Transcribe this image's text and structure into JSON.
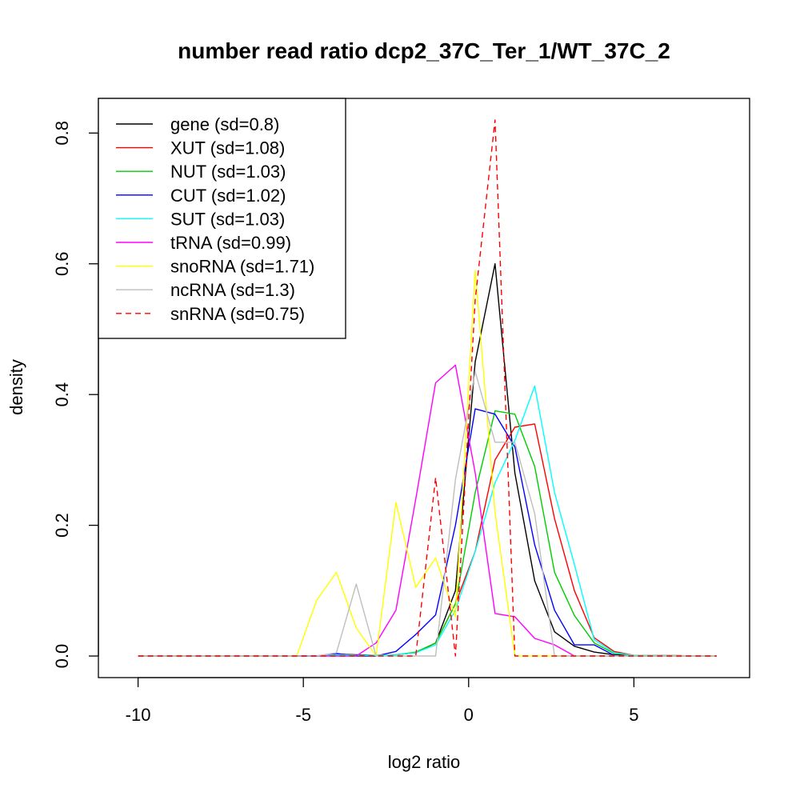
{
  "chart_data": {
    "type": "line",
    "title": "number read ratio dcp2_37C_Ter_1/WT_37C_2",
    "xlabel": "log2 ratio",
    "ylabel": "density",
    "xlim": [
      -11.2,
      8.5
    ],
    "ylim": [
      -0.033,
      0.853
    ],
    "xticks": [
      -10,
      -5,
      0,
      5
    ],
    "yticks": [
      0.0,
      0.2,
      0.4,
      0.6,
      0.8
    ],
    "xtick_labels": [
      "-10",
      "-5",
      "0",
      "5"
    ],
    "ytick_labels": [
      "0.0",
      "0.2",
      "0.4",
      "0.6",
      "0.8"
    ],
    "grid": false,
    "legend_position": "top-left",
    "series": [
      {
        "name": "gene (sd=0.8)",
        "color": "#000000",
        "dash": false,
        "x": [
          -10,
          -5.2,
          -4.6,
          -4,
          -3.4,
          -2.8,
          -2.2,
          -1.6,
          -1.0,
          -0.4,
          0.2,
          0.8,
          1.4,
          2.0,
          2.6,
          3.2,
          3.8,
          4.4,
          5.0,
          7.5
        ],
        "y": [
          0,
          0,
          0,
          0.003,
          0.002,
          0.001,
          0.002,
          0.005,
          0.02,
          0.1,
          0.45,
          0.6,
          0.28,
          0.115,
          0.037,
          0.015,
          0.006,
          0.002,
          0.001,
          0
        ]
      },
      {
        "name": "XUT (sd=1.08)",
        "color": "#ff0000",
        "dash": false,
        "x": [
          -10,
          -5.2,
          -4.6,
          -4,
          -3.4,
          -2.8,
          -2.2,
          -1.6,
          -1.0,
          -0.4,
          0.2,
          0.8,
          1.4,
          2.0,
          2.6,
          3.2,
          3.8,
          4.4,
          5.0,
          7.5
        ],
        "y": [
          0,
          0,
          0,
          0.002,
          0.001,
          0.001,
          0.002,
          0.005,
          0.02,
          0.08,
          0.16,
          0.3,
          0.35,
          0.355,
          0.21,
          0.1,
          0.028,
          0.007,
          0.001,
          0
        ]
      },
      {
        "name": "NUT (sd=1.03)",
        "color": "#00cd00",
        "dash": false,
        "x": [
          -10,
          -5.2,
          -4.6,
          -4,
          -3.4,
          -2.8,
          -2.2,
          -1.6,
          -1.0,
          -0.4,
          0.2,
          0.8,
          1.4,
          2.0,
          2.6,
          3.2,
          3.8,
          4.4,
          5.0,
          7.5
        ],
        "y": [
          0,
          0,
          0,
          0.003,
          0.001,
          0.001,
          0.002,
          0.006,
          0.02,
          0.08,
          0.25,
          0.375,
          0.37,
          0.29,
          0.128,
          0.062,
          0.02,
          0.004,
          0.001,
          0
        ]
      },
      {
        "name": "CUT (sd=1.02)",
        "color": "#0000ff",
        "dash": false,
        "x": [
          -10,
          -5.2,
          -4.6,
          -4,
          -3.4,
          -2.8,
          -2.2,
          -1.6,
          -1.0,
          -0.4,
          0.2,
          0.8,
          1.4,
          2.0,
          2.6,
          3.2,
          3.8,
          4.4,
          5.0,
          7.5
        ],
        "y": [
          0,
          0,
          0,
          0.004,
          0,
          0,
          0.007,
          0.033,
          0.063,
          0.2,
          0.378,
          0.37,
          0.32,
          0.17,
          0.07,
          0.017,
          0.017,
          0.001,
          0,
          0
        ]
      },
      {
        "name": "SUT (sd=1.03)",
        "color": "#00ffff",
        "dash": false,
        "x": [
          -10,
          -5.2,
          -4.6,
          -4,
          -3.4,
          -2.8,
          -2.2,
          -1.6,
          -1.0,
          -0.4,
          0.2,
          0.8,
          1.4,
          2.0,
          2.6,
          3.2,
          3.8,
          4.4,
          5.0,
          7.5
        ],
        "y": [
          0,
          0,
          0,
          0.002,
          0.001,
          0.001,
          0.002,
          0.005,
          0.017,
          0.07,
          0.16,
          0.265,
          0.33,
          0.413,
          0.25,
          0.14,
          0.025,
          0.005,
          0.001,
          0
        ]
      },
      {
        "name": "tRNA (sd=0.99)",
        "color": "#ff00ff",
        "dash": false,
        "x": [
          -10,
          -5.2,
          -4.6,
          -4,
          -3.4,
          -2.8,
          -2.2,
          -1.6,
          -1.0,
          -0.4,
          0.2,
          0.8,
          1.4,
          2.0,
          2.6,
          3.2,
          3.8,
          7.5
        ],
        "y": [
          0,
          0,
          0,
          0,
          0,
          0.02,
          0.07,
          0.24,
          0.418,
          0.445,
          0.28,
          0.065,
          0.06,
          0.027,
          0.017,
          0,
          0,
          0
        ]
      },
      {
        "name": "snoRNA (sd=1.71)",
        "color": "#ffff00",
        "dash": false,
        "x": [
          -10,
          -5.2,
          -4.6,
          -4,
          -3.4,
          -2.8,
          -2.2,
          -1.6,
          -1.0,
          -0.4,
          0.2,
          0.8,
          1.4,
          7.5
        ],
        "y": [
          0,
          0,
          0.085,
          0.128,
          0.043,
          0,
          0.235,
          0.105,
          0.15,
          0.06,
          0.59,
          0.22,
          0,
          0
        ]
      },
      {
        "name": "ncRNA (sd=1.3)",
        "color": "#bebebe",
        "dash": false,
        "x": [
          -10,
          -4.6,
          -4,
          -3.4,
          -2.8,
          -2.2,
          -1.6,
          -1.0,
          -0.4,
          0.2,
          0.8,
          1.4,
          2.0,
          2.6,
          7.5
        ],
        "y": [
          0,
          0,
          0.005,
          0.11,
          0,
          0,
          0,
          0,
          0.27,
          0.435,
          0.327,
          0.327,
          0.218,
          0,
          0
        ]
      },
      {
        "name": "snRNA (sd=0.75)",
        "color": "#ff0000",
        "dash": true,
        "x": [
          -10,
          -1.6,
          -1.0,
          -0.4,
          0.2,
          0.8,
          1.4,
          7.5
        ],
        "y": [
          0,
          0,
          0.273,
          0,
          0.545,
          0.82,
          0,
          0
        ]
      }
    ]
  }
}
